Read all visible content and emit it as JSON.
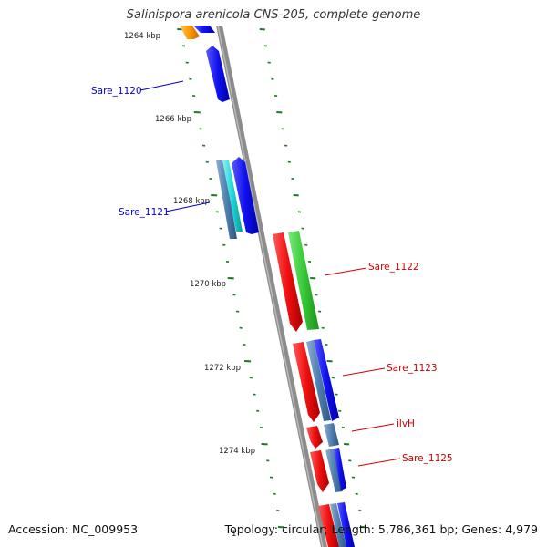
{
  "title": "Salinispora arenicola CNS-205, complete genome",
  "footer": {
    "accession": "Accession: NC_009953",
    "topology": "Topology: circular; Length: 5,786,361 bp; Genes: 4,979"
  },
  "colors": {
    "forward_strand": "#1212ee",
    "reverse_strand": "#ee1212",
    "rna": "#ff8800",
    "tick": "#1e7a1e",
    "backbone": "#8c8c8c"
  },
  "tick_labels": [
    "1264 kbp",
    "1266 kbp",
    "1268 kbp",
    "1270 kbp",
    "1272 kbp",
    "1274 kbp"
  ],
  "small_label": "1",
  "gene_labels": [
    {
      "text": "Sare_1120",
      "color": "#0000cc"
    },
    {
      "text": "Sare_1121",
      "color": "#0000cc"
    },
    {
      "text": "Sare_1122",
      "color": "#cc0000"
    },
    {
      "text": "Sare_1123",
      "color": "#cc0000"
    },
    {
      "text": "ilvH",
      "color": "#cc0000"
    },
    {
      "text": "Sare_1125",
      "color": "#cc0000"
    }
  ]
}
